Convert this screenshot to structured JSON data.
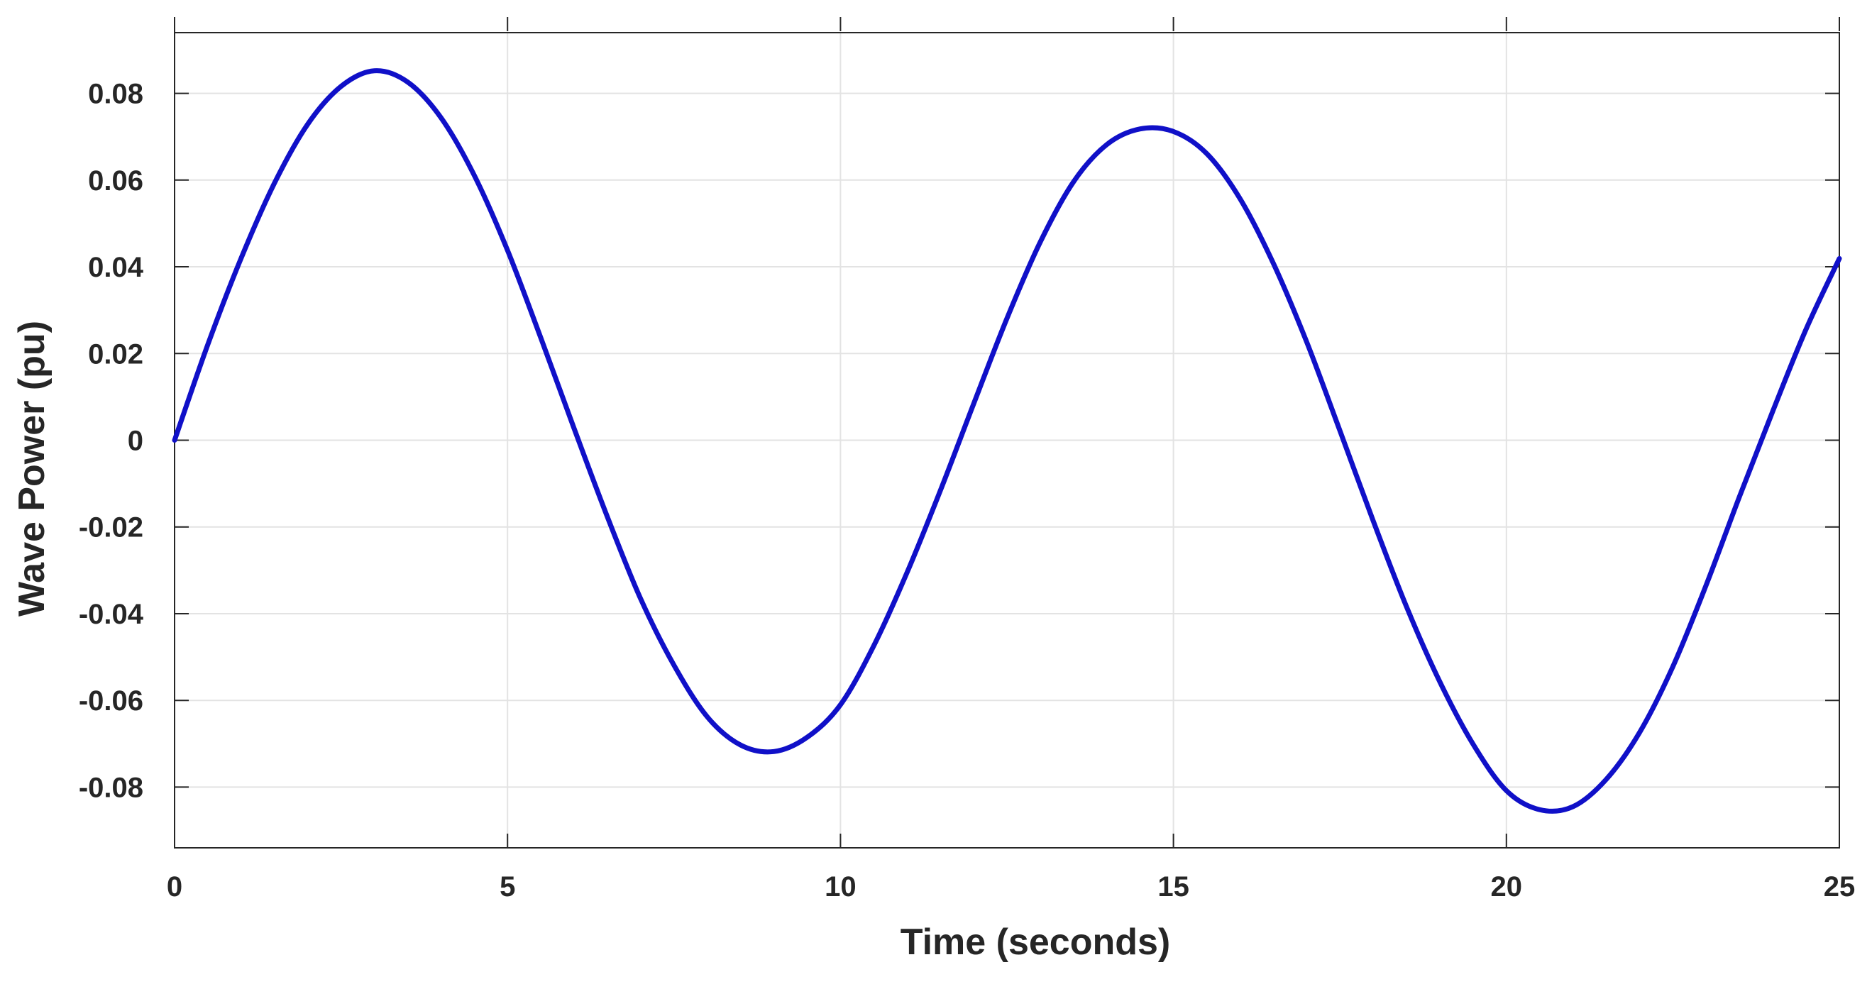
{
  "chart_data": {
    "type": "line",
    "title": "",
    "xlabel": "Time (seconds)",
    "ylabel": "Wave Power (pu)",
    "xlim": [
      0,
      25
    ],
    "ylim": [
      -0.094,
      0.094
    ],
    "x_ticks": [
      0,
      5,
      10,
      15,
      20,
      25
    ],
    "x_tick_labels": [
      "0",
      "5",
      "10",
      "15",
      "20",
      "25"
    ],
    "y_ticks": [
      0.08,
      0.06,
      0.04,
      0.02,
      0,
      -0.02,
      -0.04,
      -0.06,
      -0.08
    ],
    "y_tick_labels": [
      "0.08",
      "0.06",
      "0.04",
      "0.02",
      "0",
      "-0.02",
      "-0.04",
      "-0.06",
      "-0.08"
    ],
    "grid": true,
    "legend": "none",
    "colors": {
      "line": "#1010c8",
      "grid": "#e3e3e3",
      "axis": "#262626"
    },
    "series": [
      {
        "x": [
          0,
          0.5,
          1,
          1.5,
          2,
          2.5,
          3,
          3.5,
          4,
          4.5,
          5,
          5.5,
          6,
          6.5,
          7,
          7.5,
          8,
          8.5,
          9,
          9.5,
          10,
          10.5,
          11,
          11.5,
          12,
          12.5,
          13,
          13.5,
          14,
          14.5,
          15,
          15.5,
          16,
          16.5,
          17,
          17.5,
          18,
          18.5,
          19,
          19.5,
          20,
          20.5,
          21,
          21.5,
          22,
          22.5,
          23,
          23.5,
          24,
          24.5,
          25
        ],
        "values": [
          0.0,
          0.0221,
          0.042,
          0.0593,
          0.0729,
          0.0816,
          0.0852,
          0.0826,
          0.0744,
          0.0611,
          0.0438,
          0.0236,
          0.0027,
          -0.0177,
          -0.0366,
          -0.0519,
          -0.0638,
          -0.0703,
          -0.0718,
          -0.0685,
          -0.061,
          -0.0474,
          -0.0305,
          -0.0116,
          0.0084,
          0.0281,
          0.0457,
          0.0596,
          0.0682,
          0.0718,
          0.0712,
          0.0661,
          0.0557,
          0.0408,
          0.0227,
          0.0022,
          -0.0186,
          -0.0384,
          -0.0557,
          -0.0701,
          -0.0808,
          -0.0852,
          -0.0845,
          -0.0782,
          -0.0674,
          -0.0522,
          -0.0334,
          -0.013,
          0.0067,
          0.0256,
          0.0419
        ]
      }
    ]
  }
}
